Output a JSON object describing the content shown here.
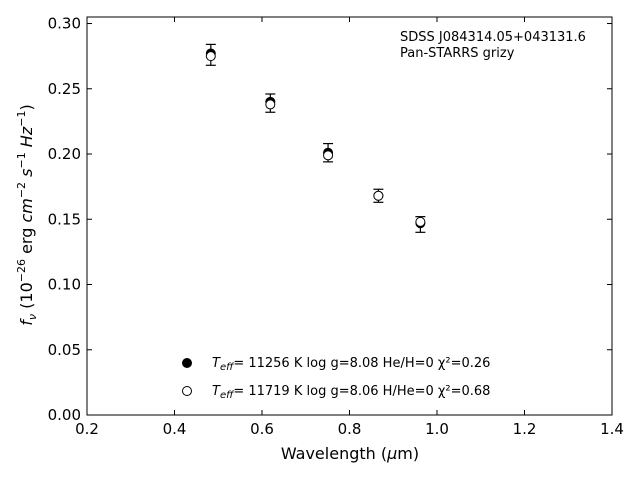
{
  "chart_data": {
    "type": "scatter",
    "title": "",
    "xlabel": "Wavelength (μm)",
    "ylabel": "f_ν (10^-26 erg cm^-2 s^-1 Hz^-1)",
    "xlim": [
      0.2,
      1.4
    ],
    "ylim": [
      0.0,
      0.305
    ],
    "xticks": [
      0.2,
      0.4,
      0.6,
      0.8,
      1.0,
      1.2,
      1.4
    ],
    "yticks": [
      0.0,
      0.05,
      0.1,
      0.15,
      0.2,
      0.25,
      0.3
    ],
    "xtick_labels": [
      "0.2",
      "0.4",
      "0.6",
      "0.8",
      "1.0",
      "1.2",
      "1.4"
    ],
    "ytick_labels": [
      "0.00",
      "0.05",
      "0.10",
      "0.15",
      "0.20",
      "0.25",
      "0.30"
    ],
    "grid": false,
    "annotation_lines": [
      "SDSS J084314.05+043131.6",
      "Pan-STARRS grizy"
    ],
    "observed": {
      "x": [
        0.483,
        0.619,
        0.751,
        0.866,
        0.962
      ],
      "y": [
        0.276,
        0.239,
        0.201,
        0.168,
        0.146
      ],
      "err": [
        0.008,
        0.007,
        0.007,
        0.005,
        0.006
      ]
    },
    "series": [
      {
        "marker": "filled-circle",
        "label_text": "= 11256 K  log g=8.08  He/H=0  χ²=0.26",
        "x": [
          0.483,
          0.619,
          0.751,
          0.866,
          0.962
        ],
        "y": [
          0.277,
          0.24,
          0.201,
          0.168,
          0.147
        ]
      },
      {
        "marker": "open-circle",
        "label_text": "= 11719 K  log g=8.06  H/He=0  χ²=0.68",
        "x": [
          0.483,
          0.619,
          0.751,
          0.866,
          0.962
        ],
        "y": [
          0.275,
          0.238,
          0.199,
          0.168,
          0.148
        ]
      }
    ],
    "legend_position": "bottom-center"
  }
}
